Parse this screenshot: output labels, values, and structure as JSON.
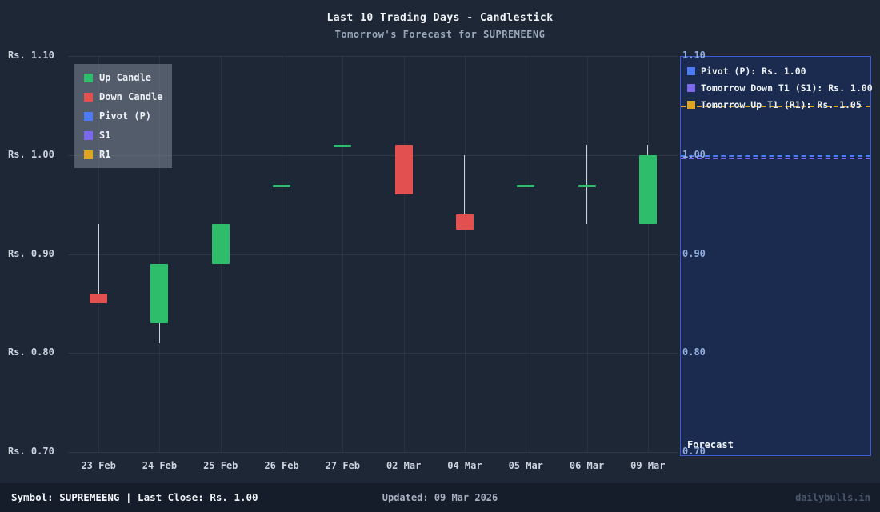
{
  "header": {
    "title": "Last 10 Trading Days - Candlestick",
    "subtitle": "Tomorrow's Forecast for SUPREMEENG"
  },
  "colors": {
    "up": "#2ebd6b",
    "down": "#e35050",
    "pivot": "#4d7bf3",
    "s1": "#7b68ee",
    "r1": "#e0a520",
    "wick": "#c9d2dd",
    "panel_border": "#3c5ad6",
    "panel_bg": "#1a2b4f"
  },
  "chart_data": {
    "type": "candlestick",
    "title": "Last 10 Trading Days - Candlestick",
    "subtitle": "Tomorrow's Forecast for SUPREMEENG",
    "ylim": [
      0.7,
      1.1
    ],
    "y_tick_values": [
      1.1,
      1.0,
      0.9,
      0.8,
      0.7
    ],
    "y_ticks_left": [
      "Rs. 1.10",
      "Rs. 1.00",
      "Rs. 0.90",
      "Rs. 0.80",
      "Rs. 0.70"
    ],
    "y_ticks_right": [
      "1.10",
      "1.00",
      "0.90",
      "0.80",
      "0.70"
    ],
    "categories": [
      "23 Feb",
      "24 Feb",
      "25 Feb",
      "26 Feb",
      "27 Feb",
      "02 Mar",
      "04 Mar",
      "05 Mar",
      "06 Mar",
      "09 Mar"
    ],
    "candles": [
      {
        "date": "23 Feb",
        "open": 0.86,
        "high": 0.93,
        "low": 0.85,
        "close": 0.85
      },
      {
        "date": "24 Feb",
        "open": 0.83,
        "high": 0.89,
        "low": 0.81,
        "close": 0.89
      },
      {
        "date": "25 Feb",
        "open": 0.89,
        "high": 0.93,
        "low": 0.89,
        "close": 0.93
      },
      {
        "date": "26 Feb",
        "open": 0.97,
        "high": 0.97,
        "low": 0.97,
        "close": 0.97
      },
      {
        "date": "27 Feb",
        "open": 1.01,
        "high": 1.01,
        "low": 1.01,
        "close": 1.01
      },
      {
        "date": "02 Mar",
        "open": 1.01,
        "high": 1.01,
        "low": 0.96,
        "close": 0.96
      },
      {
        "date": "04 Mar",
        "open": 0.94,
        "high": 1.0,
        "low": 0.925,
        "close": 0.925
      },
      {
        "date": "05 Mar",
        "open": 0.97,
        "high": 0.97,
        "low": 0.97,
        "close": 0.97
      },
      {
        "date": "06 Mar",
        "open": 0.97,
        "high": 1.01,
        "low": 0.93,
        "close": 0.97
      },
      {
        "date": "09 Mar",
        "open": 0.93,
        "high": 1.01,
        "low": 0.93,
        "close": 1.0
      }
    ],
    "legend": [
      {
        "label": "Up Candle",
        "color": "#2ebd6b"
      },
      {
        "label": "Down Candle",
        "color": "#e35050"
      },
      {
        "label": "Pivot (P)",
        "color": "#4d7bf3"
      },
      {
        "label": "S1",
        "color": "#7b68ee"
      },
      {
        "label": "R1",
        "color": "#e0a520"
      }
    ],
    "forecast_lines": [
      {
        "label": "Pivot (P): Rs. 1.00",
        "value": 1.0,
        "color": "#4d7bf3"
      },
      {
        "label": "Tomorrow Down T1 (S1): Rs. 1.00",
        "value": 1.0,
        "color": "#7b68ee"
      },
      {
        "label": "Tomorrow Up T1 (R1): Rs. 1.05",
        "value": 1.05,
        "color": "#e0a520"
      }
    ],
    "forecast_axis_label": "Forecast"
  },
  "footer": {
    "symbol_text": "Symbol: SUPREMEENG  |  Last Close: Rs. 1.00",
    "updated_text": "Updated: 09 Mar 2026",
    "brand": "dailybulls.in"
  }
}
